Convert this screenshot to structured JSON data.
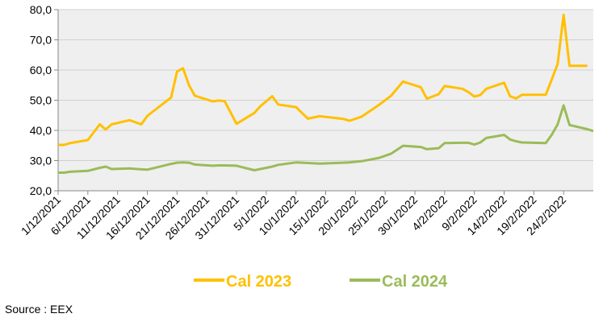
{
  "chart_data": {
    "type": "line",
    "x": [
      "1/12/2021",
      "2/12/2021",
      "3/12/2021",
      "6/12/2021",
      "8/12/2021",
      "9/12/2021",
      "10/12/2021",
      "13/12/2021",
      "15/12/2021",
      "16/12/2021",
      "20/12/2021",
      "21/12/2021",
      "22/12/2021",
      "23/12/2021",
      "24/12/2021",
      "27/12/2021",
      "28/12/2021",
      "29/12/2021",
      "31/12/2021",
      "3/1/2022",
      "4/1/2022",
      "6/1/2022",
      "7/1/2022",
      "10/1/2022",
      "12/1/2022",
      "14/1/2022",
      "18/1/2022",
      "19/1/2022",
      "21/1/2022",
      "24/1/2022",
      "26/1/2022",
      "28/1/2022",
      "31/1/2022",
      "1/2/2022",
      "3/2/2022",
      "4/2/2022",
      "7/2/2022",
      "8/2/2022",
      "9/2/2022",
      "10/2/2022",
      "11/2/2022",
      "14/2/2022",
      "15/2/2022",
      "16/2/2022",
      "17/2/2022",
      "21/2/2022",
      "22/2/2022",
      "23/2/2022",
      "24/2/2022",
      "25/2/2022",
      "28/2/2022",
      "1/3/2022"
    ],
    "series": [
      {
        "name": "Cal 2023",
        "color": "#ffc000",
        "values": [
          35.2,
          35.2,
          35.8,
          36.8,
          42.0,
          40.3,
          42.0,
          43.4,
          42.0,
          44.8,
          50.9,
          59.5,
          60.6,
          55.0,
          51.5,
          49.6,
          49.9,
          49.7,
          42.2,
          45.8,
          48.0,
          51.3,
          48.6,
          47.7,
          43.9,
          44.7,
          43.8,
          43.2,
          44.5,
          48.5,
          51.5,
          56.2,
          54.3,
          50.5,
          52.0,
          54.7,
          53.8,
          52.7,
          51.2,
          51.7,
          53.8,
          55.8,
          51.3,
          50.6,
          51.8,
          51.8,
          56.8,
          62.0,
          78.3,
          61.4,
          61.4,
          null
        ]
      },
      {
        "name": "Cal 2024",
        "color": "#9bbb59",
        "values": [
          26.0,
          26.0,
          26.3,
          26.6,
          27.6,
          28.0,
          27.2,
          27.4,
          27.1,
          27.0,
          28.9,
          29.3,
          29.4,
          29.3,
          28.7,
          28.3,
          28.4,
          28.4,
          28.3,
          26.8,
          27.2,
          28.0,
          28.6,
          29.4,
          29.2,
          29.0,
          29.3,
          29.4,
          29.8,
          30.9,
          32.3,
          34.9,
          34.5,
          33.8,
          34.1,
          35.8,
          35.9,
          35.9,
          35.3,
          36.0,
          37.5,
          38.5,
          37.0,
          36.4,
          36.0,
          35.8,
          38.5,
          42.0,
          48.3,
          41.8,
          40.4,
          39.8
        ]
      }
    ],
    "xlim": [
      "1/12/2021",
      "1/3/2022"
    ],
    "xticks": [
      "1/12/2021",
      "6/12/2021",
      "11/12/2021",
      "16/12/2021",
      "21/12/2021",
      "26/12/2021",
      "31/12/2021",
      "5/1/2022",
      "10/1/2022",
      "15/1/2022",
      "20/1/2022",
      "25/1/2022",
      "30/1/2022",
      "4/2/2022",
      "9/2/2022",
      "14/2/2022",
      "19/2/2022",
      "24/2/2022"
    ],
    "ylim": [
      20,
      80
    ],
    "yticks": [
      {
        "value": 20,
        "label": "20,0"
      },
      {
        "value": 30,
        "label": "30,0"
      },
      {
        "value": 40,
        "label": "40,0"
      },
      {
        "value": 50,
        "label": "50,0"
      },
      {
        "value": 60,
        "label": "60,0"
      },
      {
        "value": 70,
        "label": "70,0"
      },
      {
        "value": 80,
        "label": "80,0"
      }
    ],
    "grid": true,
    "source": "Source : EEX"
  }
}
